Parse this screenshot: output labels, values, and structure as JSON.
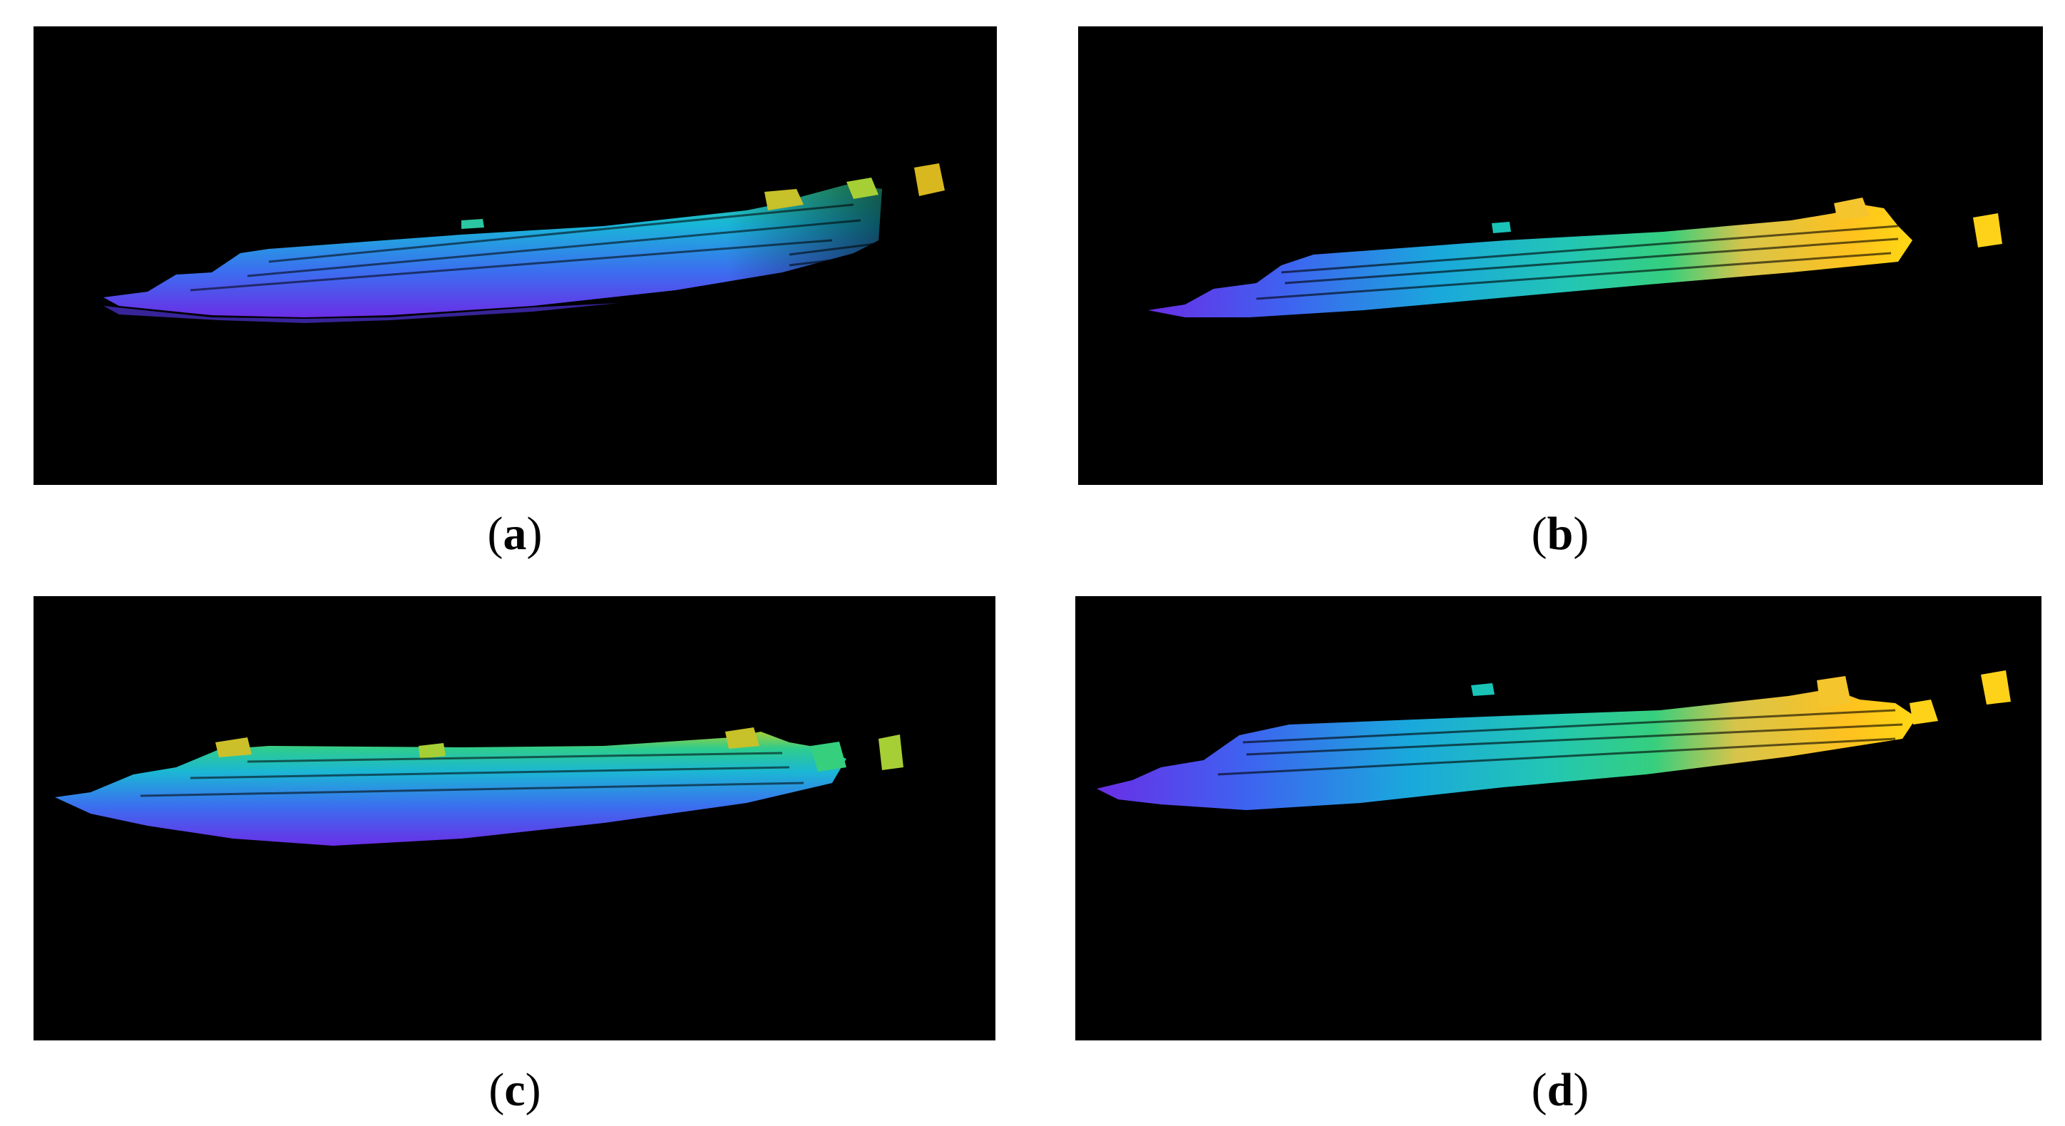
{
  "figure": {
    "panels": [
      {
        "id": "a",
        "label": "a",
        "colormap": [
          "#5b2fe0",
          "#3a73ef",
          "#18b8d6",
          "#2dc99a",
          "#8cd23a",
          "#d8c41e"
        ]
      },
      {
        "id": "b",
        "label": "b",
        "colormap": [
          "#5b2fe0",
          "#3a73ef",
          "#18b8d6",
          "#2dc99a",
          "#f2c43a",
          "#ffd21a"
        ]
      },
      {
        "id": "c",
        "label": "c",
        "colormap": [
          "#5b2fe0",
          "#3a73ef",
          "#18b8d6",
          "#2dc99a",
          "#8cd23a",
          "#d8c41e"
        ]
      },
      {
        "id": "d",
        "label": "d",
        "colormap": [
          "#5b2fe0",
          "#3a73ef",
          "#18b8d6",
          "#2dc99a",
          "#f2c43a",
          "#ffd21a"
        ]
      }
    ],
    "background_color": "#000000"
  }
}
